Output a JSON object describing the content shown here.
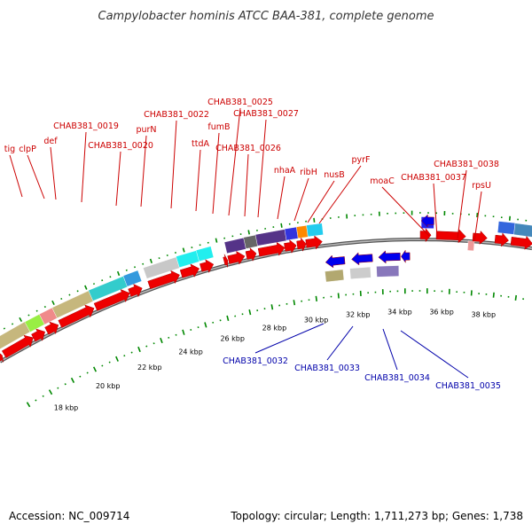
{
  "title": "Campylobacter hominis ATCC BAA-381, complete genome",
  "footer": {
    "accession": "Accession: NC_009714",
    "summary": "Topology: circular; Length: 1,711,273 bp; Genes: 1,738"
  },
  "colors": {
    "forward_label": "#cc0000",
    "reverse_label": "#0000aa",
    "forward_arrow": "#ee0000",
    "reverse_arrow": "#0000ee",
    "backbone": "#888888",
    "tick": "#008800"
  },
  "kbp_labels": [
    "18 kbp",
    "20 kbp",
    "22 kbp",
    "24 kbp",
    "26 kbp",
    "28 kbp",
    "30 kbp",
    "32 kbp",
    "34 kbp",
    "36 kbp",
    "38 kbp"
  ],
  "forward_labels": [
    "tig",
    "clpP",
    "def",
    "CHAB381_0019",
    "CHAB381_0020",
    "purN",
    "CHAB381_0022",
    "ttdA",
    "fumB",
    "CHAB381_0025",
    "CHAB381_0026",
    "CHAB381_0027",
    "nhaA",
    "ribH",
    "nusB",
    "pyrF",
    "moaC",
    "CHAB381_0037",
    "CHAB381_0038",
    "rpsU"
  ],
  "reverse_labels": [
    "CHAB381_0032",
    "CHAB381_0033",
    "CHAB381_0034",
    "CHAB381_0035"
  ]
}
